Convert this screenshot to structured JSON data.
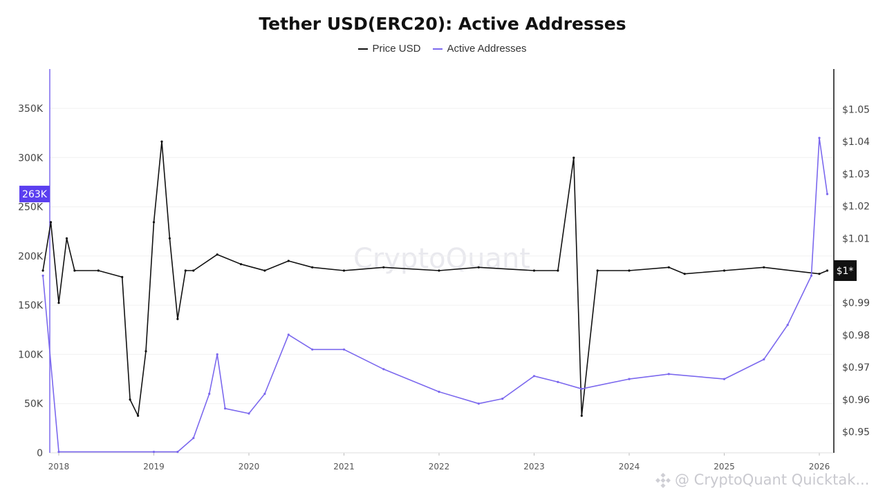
{
  "chart_data": {
    "type": "line",
    "title": "Tether USD(ERC20): Active Addresses",
    "legend_placement": "top-center",
    "grid": true,
    "x_ticks": [
      "2018",
      "2019",
      "2020",
      "2021",
      "2022",
      "2023",
      "2024",
      "2025",
      "2026"
    ],
    "y_left": {
      "ticks": [
        "0",
        "50K",
        "100K",
        "150K",
        "200K",
        "250K",
        "300K",
        "350K"
      ],
      "ylim": [
        0,
        390000
      ],
      "current_value_label": "263K"
    },
    "y_right": {
      "ticks": [
        "$0.95",
        "$0.96",
        "$0.97",
        "$0.98",
        "$0.99",
        "$1.01",
        "$1.02",
        "$1.03",
        "$1.04",
        "$1.05"
      ],
      "ylim": [
        0.9435,
        1.0625
      ],
      "current_value_label": "$1*"
    },
    "series": [
      {
        "name": "Price USD",
        "color": "#111111",
        "axis": "right",
        "x": [
          "2017-11",
          "2017-12",
          "2018-01",
          "2018-02",
          "2018-03",
          "2018-06",
          "2018-09",
          "2018-10",
          "2018-11",
          "2018-12",
          "2019-01",
          "2019-02",
          "2019-03",
          "2019-04",
          "2019-05",
          "2019-06",
          "2019-09",
          "2019-12",
          "2020-03",
          "2020-06",
          "2020-09",
          "2021-01",
          "2021-06",
          "2022-01",
          "2022-06",
          "2023-01",
          "2023-04",
          "2023-06",
          "2023-07",
          "2023-09",
          "2024-01",
          "2024-06",
          "2024-08",
          "2025-01",
          "2025-06",
          "2026-01",
          "2026-02"
        ],
        "values": [
          1.0,
          1.015,
          0.99,
          1.01,
          1.0,
          1.0,
          0.998,
          0.96,
          0.955,
          0.975,
          1.015,
          1.04,
          1.01,
          0.985,
          1.0,
          1.0,
          1.005,
          1.002,
          1.0,
          1.003,
          1.001,
          1.0,
          1.001,
          1.0,
          1.001,
          1.0,
          1.0,
          1.035,
          0.955,
          1.0,
          1.0,
          1.001,
          0.999,
          1.0,
          1.001,
          0.999,
          1.0
        ]
      },
      {
        "name": "Active Addresses",
        "color": "#7b68ee",
        "axis": "left",
        "x": [
          "2017-11",
          "2018-01",
          "2019-01",
          "2019-04",
          "2019-06",
          "2019-08",
          "2019-09",
          "2019-10",
          "2020-01",
          "2020-03",
          "2020-06",
          "2020-09",
          "2021-01",
          "2021-06",
          "2022-01",
          "2022-06",
          "2022-09",
          "2023-01",
          "2023-04",
          "2023-07",
          "2024-01",
          "2024-06",
          "2025-01",
          "2025-06",
          "2025-09",
          "2025-12",
          "2026-01",
          "2026-02"
        ],
        "values": [
          180000,
          1000,
          1000,
          1000,
          15000,
          60000,
          100000,
          45000,
          40000,
          60000,
          120000,
          105000,
          105000,
          85000,
          62000,
          50000,
          55000,
          78000,
          72000,
          65000,
          75000,
          80000,
          75000,
          95000,
          130000,
          180000,
          320000,
          263000
        ]
      }
    ],
    "watermark": "CryptoQuant",
    "source_label": "@ CryptoQuant Quicktak..."
  }
}
